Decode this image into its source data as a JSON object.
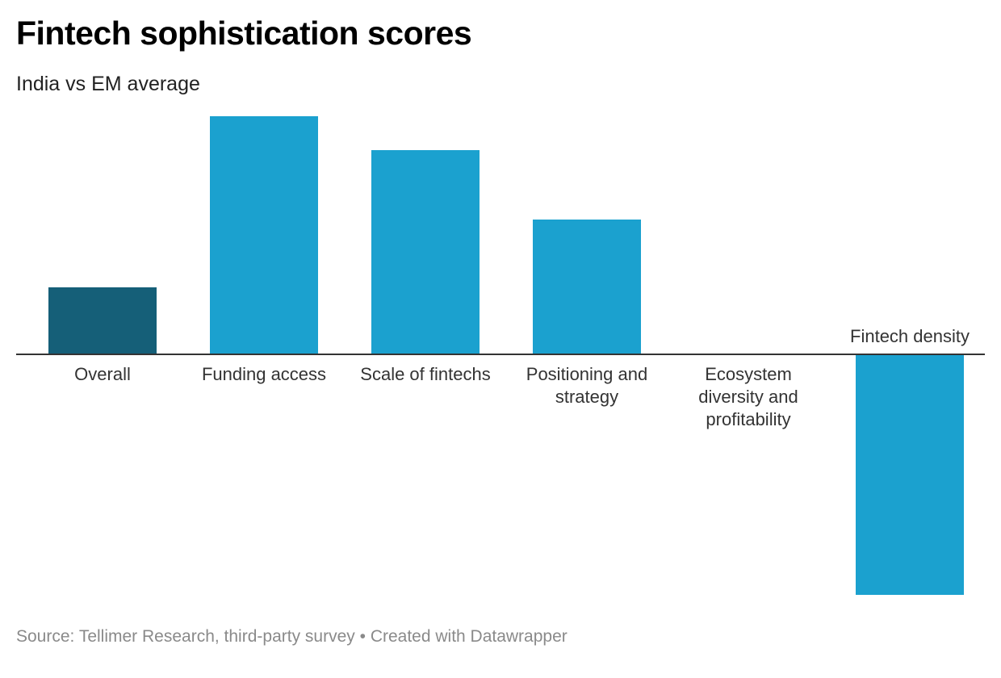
{
  "title": "Fintech sophistication scores",
  "subtitle": "India vs EM average",
  "footer": {
    "source": "Source: Tellimer Research, third-party survey",
    "separator": "•",
    "credit": "Created with Datawrapper"
  },
  "colors": {
    "highlight": "#155f78",
    "bar": "#1ba1cf",
    "baseline": "#333333"
  },
  "chart_data": {
    "type": "bar",
    "title": "Fintech sophistication scores",
    "subtitle": "India vs EM average",
    "categories": [
      "Overall",
      "Funding access",
      "Scale of fintechs",
      "Positioning and strategy",
      "Ecosystem diversity and profitability",
      "Fintech density"
    ],
    "category_label_lines": [
      [
        "Overall"
      ],
      [
        "Funding access"
      ],
      [
        "Scale of fintechs"
      ],
      [
        "Positioning and",
        "strategy"
      ],
      [
        "Ecosystem",
        "diversity and",
        "profitability"
      ],
      [
        "Fintech density"
      ]
    ],
    "values": [
      0.83,
      2.95,
      2.53,
      1.67,
      0,
      -2.98
    ],
    "highlighted_category": "Overall",
    "ylim": [
      -3,
      3
    ],
    "xlabel": "",
    "ylabel": "",
    "grid": false,
    "legend": "none"
  }
}
